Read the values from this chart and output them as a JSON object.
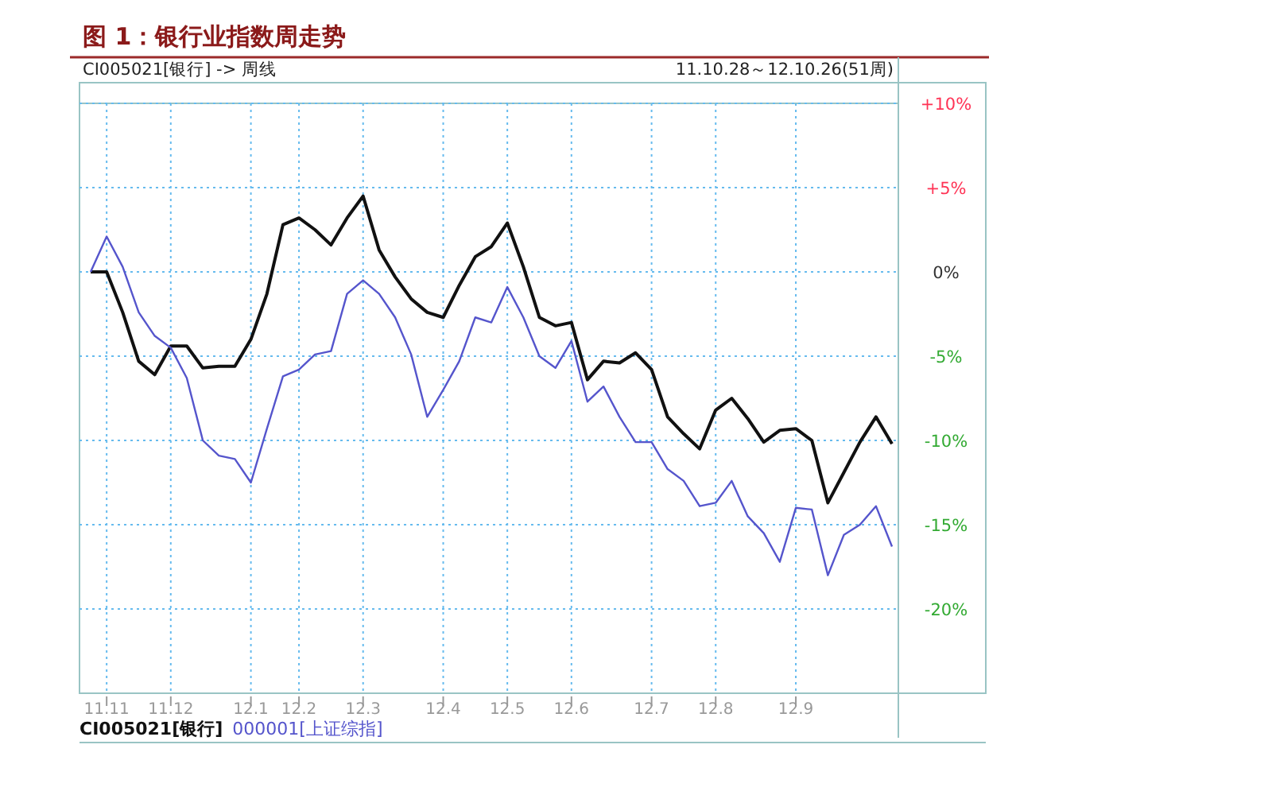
{
  "chart_data": {
    "type": "line",
    "title": "图 1：银行业指数周走势",
    "subtitle": "CI005021[银行] -> 周线",
    "annotations": [
      "11.10.28～12.10.26(51周)"
    ],
    "categories": [
      null,
      "11.11",
      null,
      null,
      null,
      "11.12",
      null,
      null,
      null,
      null,
      "12.1",
      null,
      null,
      "12.2",
      null,
      null,
      null,
      "12.3",
      null,
      null,
      null,
      null,
      "12.4",
      null,
      null,
      null,
      "12.5",
      null,
      null,
      null,
      "12.6",
      null,
      null,
      null,
      null,
      "12.7",
      null,
      null,
      null,
      "12.8",
      null,
      null,
      null,
      null,
      "12.9",
      null,
      null,
      null,
      null,
      null,
      null
    ],
    "series": [
      {
        "name": "CI005021[银行]",
        "color": "#111111",
        "values": [
          0,
          0,
          -2.4,
          -5.3,
          -6.1,
          -4.4,
          -4.4,
          -5.7,
          -5.6,
          -5.6,
          -4.0,
          -1.3,
          2.8,
          3.2,
          2.5,
          1.6,
          3.2,
          4.5,
          1.3,
          -0.3,
          -1.6,
          -2.4,
          -2.7,
          -0.8,
          0.9,
          1.5,
          2.9,
          0.3,
          -2.7,
          -3.2,
          -3.0,
          -6.4,
          -5.3,
          -5.4,
          -4.8,
          -5.8,
          -8.6,
          -9.6,
          -10.5,
          -8.2,
          -7.5,
          -8.7,
          -10.1,
          -9.4,
          -9.3,
          -10.0,
          -13.7,
          -11.9,
          -10.1,
          -8.6,
          -10.2
        ]
      },
      {
        "name": "000001[上证综指]",
        "color": "#5555cc",
        "values": [
          0,
          2.1,
          0.3,
          -2.4,
          -3.8,
          -4.5,
          -6.3,
          -10.0,
          -10.9,
          -11.1,
          -12.5,
          -9.3,
          -6.2,
          -5.8,
          -4.9,
          -4.7,
          -1.3,
          -0.5,
          -1.3,
          -2.7,
          -4.9,
          -8.6,
          -7.0,
          -5.3,
          -2.7,
          -3.0,
          -0.9,
          -2.7,
          -5.0,
          -5.7,
          -4.1,
          -7.7,
          -6.8,
          -8.6,
          -10.1,
          -10.1,
          -11.7,
          -12.4,
          -13.9,
          -13.7,
          -12.4,
          -14.5,
          -15.5,
          -17.2,
          -14.0,
          -14.1,
          -18.0,
          -15.6,
          -15.0,
          -13.9,
          -16.3
        ]
      }
    ],
    "ylim": [
      -25,
      10
    ],
    "yticks": [
      {
        "value": 10,
        "label": "+10%"
      },
      {
        "value": 5,
        "label": "+5%"
      },
      {
        "value": 0,
        "label": "0%"
      },
      {
        "value": -5,
        "label": "-5%"
      },
      {
        "value": -10,
        "label": "-10%"
      },
      {
        "value": -15,
        "label": "-15%"
      },
      {
        "value": -20,
        "label": "-20%"
      }
    ],
    "grid": true,
    "legend": "bottom"
  }
}
